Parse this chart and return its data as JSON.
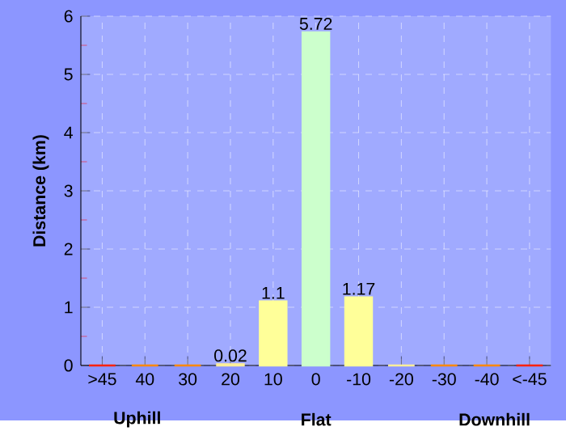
{
  "chart_data": {
    "type": "bar",
    "ylabel": "Distance (km)",
    "categories": [
      ">45",
      "40",
      "30",
      "20",
      "10",
      "0",
      "-10",
      "-20",
      "-30",
      "-40",
      "<-45"
    ],
    "values": [
      0,
      0,
      0,
      0.02,
      1.1,
      5.72,
      1.17,
      0,
      0,
      0,
      0
    ],
    "colors": [
      "#ff2200",
      "#ff8800",
      "#ff8800",
      "#ffee99",
      "#ffff99",
      "#ccffcc",
      "#ffff99",
      "#ffee99",
      "#ff8800",
      "#ff8800",
      "#ff2200"
    ],
    "value_labels": [
      null,
      null,
      null,
      "0.02",
      "1.1",
      "5.72",
      "1.17",
      null,
      null,
      null,
      null
    ],
    "ylim": [
      0,
      6
    ],
    "yticks": [
      0,
      1,
      2,
      3,
      4,
      5,
      6
    ],
    "grid": true,
    "annotations": [
      "Uphill",
      "Flat",
      "Downhill"
    ]
  }
}
